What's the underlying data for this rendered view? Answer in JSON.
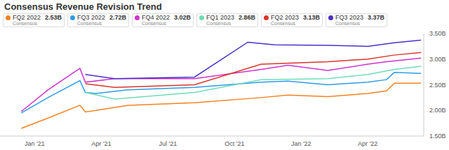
{
  "chart_data": {
    "type": "line",
    "title": "Consensus Revenue Revision Trend",
    "legend_note": "Consensus",
    "xlim": [
      2020.87,
      2022.46
    ],
    "xticks": [
      {
        "value": 2021,
        "label": "Jan '21"
      },
      {
        "value": 2021.25,
        "label": "Apr '21"
      },
      {
        "value": 2021.5,
        "label": "Jul '21"
      },
      {
        "value": 2021.75,
        "label": "Oct '21"
      },
      {
        "value": 2022,
        "label": "Jan '22"
      },
      {
        "value": 2022.25,
        "label": "Apr '22"
      }
    ],
    "ylim": [
      1.5,
      3.5
    ],
    "yticks": [
      {
        "value": 1.5,
        "label": "1.50B"
      },
      {
        "value": 2,
        "label": "2.00B"
      },
      {
        "value": 2.5,
        "label": "2.50B"
      },
      {
        "value": 3,
        "label": "3.00B"
      },
      {
        "value": 3.5,
        "label": "3.50B"
      }
    ],
    "grid": false,
    "series": [
      {
        "name": "FQ2 2022",
        "color": "#f58220",
        "legend_value": "2.53B",
        "x": [
          2020.95,
          2021.05,
          2021.17,
          2021.19,
          2021.23,
          2021.35,
          2021.6,
          2021.85,
          2021.95,
          2022.1,
          2022.25,
          2022.32,
          2022.35,
          2022.45
        ],
        "values": [
          1.65,
          1.85,
          2.1,
          1.97,
          2.0,
          2.1,
          2.15,
          2.25,
          2.3,
          2.27,
          2.33,
          2.38,
          2.53,
          2.53
        ]
      },
      {
        "name": "FQ3 2022",
        "color": "#2e9be6",
        "legend_value": "2.72B",
        "x": [
          2020.95,
          2021.05,
          2021.17,
          2021.19,
          2021.23,
          2021.35,
          2021.6,
          2021.85,
          2021.95,
          2022.1,
          2022.25,
          2022.32,
          2022.35,
          2022.45
        ],
        "values": [
          1.95,
          2.25,
          2.58,
          2.35,
          2.33,
          2.4,
          2.45,
          2.55,
          2.57,
          2.5,
          2.55,
          2.6,
          2.74,
          2.72
        ]
      },
      {
        "name": "FQ4 2022",
        "color": "#cc33cc",
        "legend_value": "3.02B",
        "x": [
          2020.95,
          2021.05,
          2021.17,
          2021.19,
          2021.3,
          2021.6,
          2021.85,
          2021.95,
          2022.1,
          2022.25,
          2022.32,
          2022.45
        ],
        "values": [
          1.98,
          2.4,
          2.82,
          2.55,
          2.62,
          2.62,
          2.8,
          2.88,
          2.78,
          2.9,
          2.95,
          3.02
        ]
      },
      {
        "name": "FQ1 2023",
        "color": "#6fdcb4",
        "legend_value": "2.86B",
        "x": [
          2021.19,
          2021.3,
          2021.6,
          2021.85,
          2022.1,
          2022.25,
          2022.35,
          2022.45
        ],
        "values": [
          2.35,
          2.22,
          2.35,
          2.6,
          2.62,
          2.7,
          2.8,
          2.86
        ]
      },
      {
        "name": "FQ2 2023",
        "color": "#d9352a",
        "legend_value": "3.13B",
        "x": [
          2021.19,
          2021.3,
          2021.6,
          2021.85,
          2022.1,
          2022.25,
          2022.35,
          2022.45
        ],
        "values": [
          2.52,
          2.45,
          2.5,
          2.9,
          2.95,
          3.0,
          3.08,
          3.13
        ]
      },
      {
        "name": "FQ3 2023",
        "color": "#4b2fc9",
        "legend_value": "3.37B",
        "x": [
          2021.19,
          2021.3,
          2021.6,
          2021.8,
          2021.9,
          2022.1,
          2022.25,
          2022.35,
          2022.45
        ],
        "values": [
          2.7,
          2.62,
          2.65,
          3.33,
          3.28,
          3.27,
          3.25,
          3.32,
          3.37
        ]
      }
    ]
  }
}
